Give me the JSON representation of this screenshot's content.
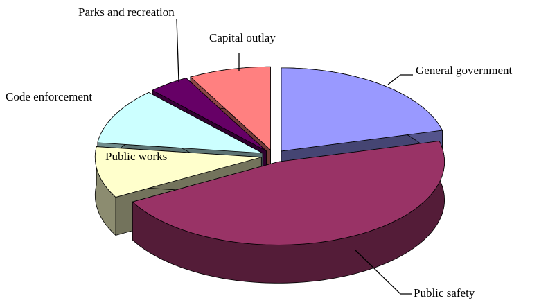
{
  "chart_data": {
    "type": "pie",
    "categories": [
      "General government",
      "Public safety",
      "Public works",
      "Code enforcement",
      "Parks and recreation",
      "Capital outlay"
    ],
    "values": [
      21,
      46,
      10,
      11,
      4,
      8
    ],
    "colors": [
      "#9999ff",
      "#993366",
      "#ffffcc",
      "#ccffff",
      "#660066",
      "#ff8080"
    ],
    "explode": true,
    "three_d": true
  }
}
